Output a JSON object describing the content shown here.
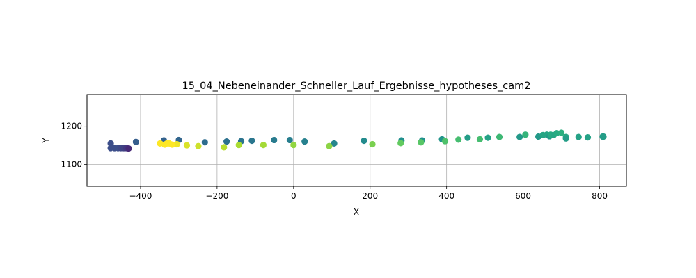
{
  "chart_data": {
    "type": "scatter",
    "title": "15_04_Nebeneinander_Schneller_Lauf_Ergebnisse_hypotheses_cam2",
    "xlabel": "X",
    "ylabel": "Y",
    "xlim": [
      -540,
      870
    ],
    "ylim": [
      1043,
      1283
    ],
    "xticks": [
      -400,
      -200,
      0,
      200,
      400,
      600,
      800
    ],
    "yticks": [
      1100,
      1200
    ],
    "grid": true,
    "colormap": "viridis",
    "points": [
      {
        "x": -478,
        "y": 1155,
        "c": 0.24
      },
      {
        "x": -478,
        "y": 1143,
        "c": 0.24
      },
      {
        "x": -468,
        "y": 1143,
        "c": 0.24
      },
      {
        "x": -459,
        "y": 1143,
        "c": 0.24
      },
      {
        "x": -452,
        "y": 1143,
        "c": 0.22
      },
      {
        "x": -444,
        "y": 1143,
        "c": 0.2
      },
      {
        "x": -437,
        "y": 1143,
        "c": 0.17
      },
      {
        "x": -431,
        "y": 1142,
        "c": 0.12
      },
      {
        "x": -412,
        "y": 1159,
        "c": 0.3
      },
      {
        "x": -339,
        "y": 1163,
        "c": 0.32
      },
      {
        "x": -300,
        "y": 1164,
        "c": 0.33
      },
      {
        "x": -232,
        "y": 1158,
        "c": 0.36
      },
      {
        "x": -175,
        "y": 1160,
        "c": 0.38
      },
      {
        "x": -137,
        "y": 1161,
        "c": 0.39
      },
      {
        "x": -109,
        "y": 1162,
        "c": 0.4
      },
      {
        "x": -51,
        "y": 1164,
        "c": 0.42
      },
      {
        "x": -10,
        "y": 1164,
        "c": 0.43
      },
      {
        "x": 29,
        "y": 1160,
        "c": 0.44
      },
      {
        "x": 106,
        "y": 1155,
        "c": 0.46
      },
      {
        "x": 184,
        "y": 1162,
        "c": 0.48
      },
      {
        "x": 282,
        "y": 1163,
        "c": 0.5
      },
      {
        "x": 336,
        "y": 1163,
        "c": 0.51
      },
      {
        "x": 388,
        "y": 1166,
        "c": 0.52
      },
      {
        "x": 455,
        "y": 1170,
        "c": 0.56
      },
      {
        "x": 508,
        "y": 1170,
        "c": 0.58
      },
      {
        "x": 591,
        "y": 1172,
        "c": 0.54
      },
      {
        "x": 640,
        "y": 1173,
        "c": 0.54
      },
      {
        "x": 652,
        "y": 1177,
        "c": 0.6
      },
      {
        "x": 662,
        "y": 1178,
        "c": 0.6
      },
      {
        "x": 669,
        "y": 1174,
        "c": 0.54
      },
      {
        "x": 672,
        "y": 1178,
        "c": 0.62
      },
      {
        "x": 680,
        "y": 1177,
        "c": 0.6
      },
      {
        "x": 688,
        "y": 1182,
        "c": 0.62
      },
      {
        "x": 700,
        "y": 1183,
        "c": 0.64
      },
      {
        "x": 712,
        "y": 1172,
        "c": 0.6
      },
      {
        "x": 712,
        "y": 1168,
        "c": 0.56
      },
      {
        "x": 745,
        "y": 1172,
        "c": 0.58
      },
      {
        "x": 769,
        "y": 1171,
        "c": 0.58
      },
      {
        "x": 808,
        "y": 1173,
        "c": 0.56
      },
      {
        "x": 810,
        "y": 1173,
        "c": 0.56
      },
      {
        "x": 606,
        "y": 1178,
        "c": 0.66
      },
      {
        "x": 538,
        "y": 1172,
        "c": 0.68
      },
      {
        "x": 487,
        "y": 1166,
        "c": 0.7
      },
      {
        "x": 431,
        "y": 1165,
        "c": 0.7
      },
      {
        "x": 396,
        "y": 1161,
        "c": 0.72
      },
      {
        "x": 333,
        "y": 1158,
        "c": 0.74
      },
      {
        "x": 280,
        "y": 1156,
        "c": 0.76
      },
      {
        "x": 206,
        "y": 1153,
        "c": 0.8
      },
      {
        "x": 93,
        "y": 1148,
        "c": 0.83
      },
      {
        "x": 0,
        "y": 1151,
        "c": 0.84
      },
      {
        "x": -79,
        "y": 1151,
        "c": 0.87
      },
      {
        "x": -143,
        "y": 1151,
        "c": 0.88
      },
      {
        "x": -182,
        "y": 1145,
        "c": 0.9
      },
      {
        "x": -249,
        "y": 1148,
        "c": 0.93
      },
      {
        "x": -279,
        "y": 1150,
        "c": 0.95
      },
      {
        "x": -305,
        "y": 1153,
        "c": 0.98
      },
      {
        "x": -317,
        "y": 1152,
        "c": 1.0
      },
      {
        "x": -325,
        "y": 1155,
        "c": 1.0
      },
      {
        "x": -331,
        "y": 1155,
        "c": 1.0
      },
      {
        "x": -337,
        "y": 1152,
        "c": 1.0
      },
      {
        "x": -349,
        "y": 1155,
        "c": 1.0
      }
    ]
  }
}
